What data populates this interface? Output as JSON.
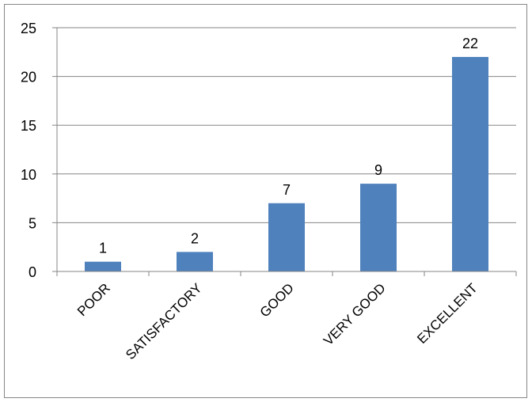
{
  "chart_data": {
    "type": "bar",
    "categories": [
      "POOR",
      "SATISFACTORY",
      "GOOD",
      "VERY GOOD",
      "EXCELLENT"
    ],
    "values": [
      1,
      2,
      7,
      9,
      22
    ],
    "data_labels": [
      "1",
      "2",
      "7",
      "9",
      "22"
    ],
    "yticks": [
      "0",
      "5",
      "10",
      "15",
      "20",
      "25"
    ],
    "ylim": [
      0,
      25
    ],
    "grid": true,
    "legend": "none",
    "colors": {
      "bar": "#4f81bd",
      "grid": "#868686",
      "axis": "#868686",
      "border": "#868686"
    }
  }
}
